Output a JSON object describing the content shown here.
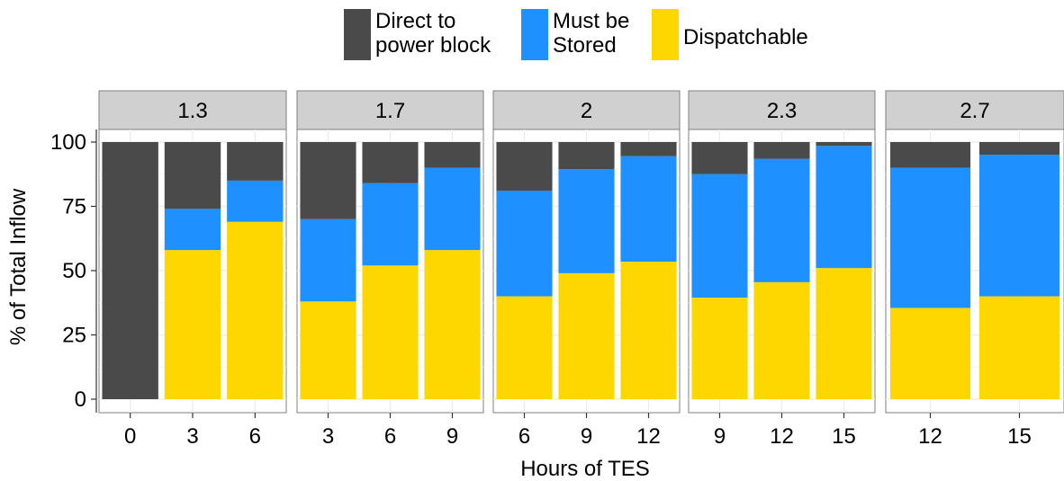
{
  "chart_data": {
    "type": "bar",
    "stacked": true,
    "facet_strip_labels": [
      "1.3",
      "1.7",
      "2",
      "2.3",
      "2.7"
    ],
    "xlabel": "Hours of TES",
    "ylabel": "% of Total Inflow",
    "ylim": [
      0,
      100
    ],
    "y_ticks": [
      "0",
      "25",
      "50",
      "75",
      "100"
    ],
    "grid": true,
    "legend_position": "top",
    "series": [
      {
        "name": "Direct to\npower block",
        "color": "#4a4a4a"
      },
      {
        "name": "Must be\nStored",
        "color": "#1e90ff"
      },
      {
        "name": "Dispatchable",
        "color": "#ffd700"
      }
    ],
    "facets": [
      {
        "label": "1.3",
        "categories": [
          "0",
          "3",
          "6"
        ],
        "values": {
          "Dispatchable": [
            0,
            58,
            69
          ],
          "Must be Stored": [
            0,
            16,
            16
          ],
          "Direct to power block": [
            100,
            26,
            15
          ]
        }
      },
      {
        "label": "1.7",
        "categories": [
          "3",
          "6",
          "9"
        ],
        "values": {
          "Dispatchable": [
            38,
            52,
            58
          ],
          "Must be Stored": [
            32,
            32,
            32
          ],
          "Direct to power block": [
            30,
            16,
            10
          ]
        }
      },
      {
        "label": "2",
        "categories": [
          "6",
          "9",
          "12"
        ],
        "values": {
          "Dispatchable": [
            40,
            49,
            53.5
          ],
          "Must be Stored": [
            41,
            40.5,
            41
          ],
          "Direct to power block": [
            19,
            10.5,
            5.5
          ]
        }
      },
      {
        "label": "2.3",
        "categories": [
          "9",
          "12",
          "15"
        ],
        "values": {
          "Dispatchable": [
            39.5,
            45.5,
            51
          ],
          "Must be Stored": [
            48,
            48,
            47.5
          ],
          "Direct to power block": [
            12.5,
            6.5,
            1.5
          ]
        }
      },
      {
        "label": "2.7",
        "categories": [
          "12",
          "15"
        ],
        "values": {
          "Dispatchable": [
            35.5,
            40
          ],
          "Must be Stored": [
            54.5,
            55
          ],
          "Direct to power block": [
            10,
            5
          ]
        }
      }
    ]
  }
}
